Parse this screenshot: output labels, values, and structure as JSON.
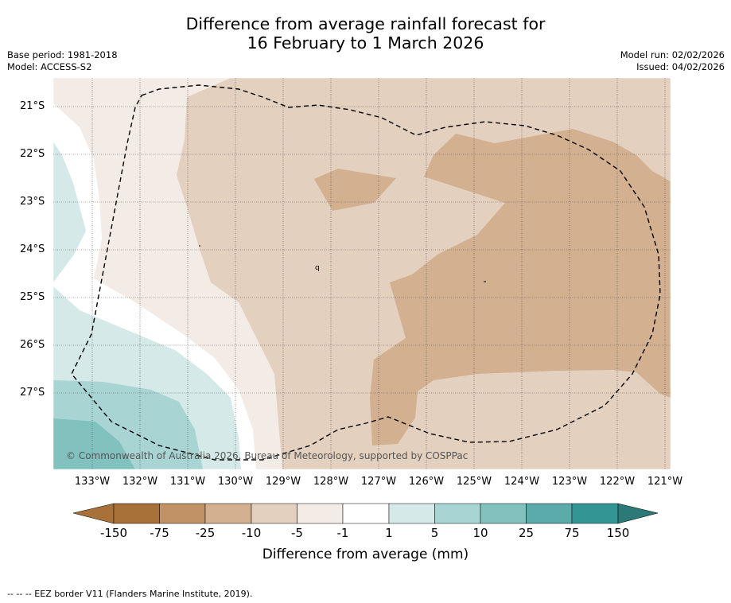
{
  "title": {
    "line1": "Difference from average rainfall forecast for",
    "line2": "16 February to 1 March 2026"
  },
  "meta_left": {
    "base_period": "Base period: 1981-2018",
    "model": "Model: ACCESS-S2"
  },
  "meta_right": {
    "model_run": "Model run: 02/02/2026",
    "issued": "Issued: 04/02/2026"
  },
  "map": {
    "latitude_labels": [
      "21°S",
      "22°S",
      "23°S",
      "24°S",
      "25°S",
      "26°S",
      "27°S"
    ],
    "longitude_labels": [
      "133°W",
      "132°W",
      "131°W",
      "130°W",
      "129°W",
      "128°W",
      "127°W",
      "126°W",
      "125°W",
      "124°W",
      "123°W",
      "122°W",
      "121°W"
    ],
    "copyright": "© Commonwealth of Australia 2026, Bureau of Meteorology, supported by COSPPac",
    "colors": {
      "c_neg150": "#a9713a",
      "c_neg75": "#c09265",
      "c_neg25": "#d2b090",
      "c_neg10": "#e3d0bf",
      "c_neg5": "#f3ece6",
      "c_neutral": "#ffffff",
      "c_pos1": "#d4e9e8",
      "c_pos5": "#a8d5d4",
      "c_pos10": "#81c1be",
      "c_pos25": "#5aabaa",
      "c_pos75": "#329794",
      "c_pos150": "#2b7a77"
    }
  },
  "colorbar": {
    "ticks": [
      "-150",
      "-75",
      "-25",
      "-10",
      "-5",
      "-1",
      "1",
      "5",
      "10",
      "25",
      "75",
      "150"
    ],
    "title": "Difference from average (mm)"
  },
  "footer": "--  --  -- EEZ border V11 (Flanders Marine Institute, 2019)."
}
